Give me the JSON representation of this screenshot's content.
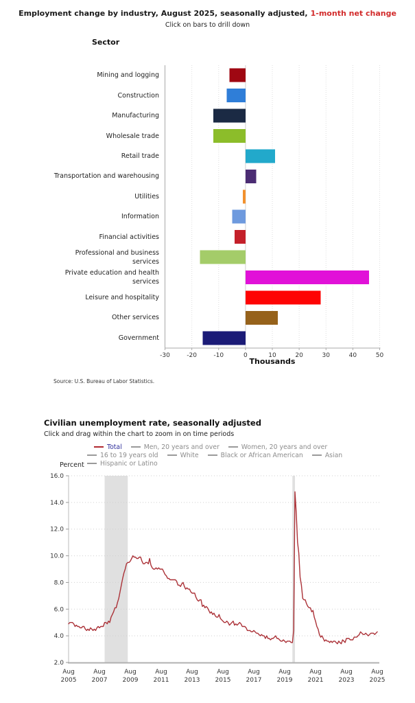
{
  "chart_data": [
    {
      "type": "bar",
      "orientation": "horizontal",
      "title": "Employment change by industry, August 2025, seasonally adjusted,",
      "title_highlight": "1-month net change",
      "title_highlight_color": "#d22b2b",
      "subtitle": "Click on bars to drill down",
      "ylabel": "Sector",
      "xlabel": "Thousands",
      "source": "Source: U.S. Bureau of Labor Statistics.",
      "xlim": [
        -30,
        50
      ],
      "xticks": [
        -30,
        -20,
        -10,
        0,
        10,
        20,
        30,
        40,
        50
      ],
      "grid": "vertical-dotted",
      "categories": [
        "Mining and logging",
        "Construction",
        "Manufacturing",
        "Wholesale trade",
        "Retail trade",
        "Transportation and warehousing",
        "Utilities",
        "Information",
        "Financial activities",
        "Professional and business services",
        "Private education and health services",
        "Leisure and hospitality",
        "Other services",
        "Government"
      ],
      "values": [
        -6,
        -7,
        -12,
        -12,
        11,
        4,
        -1,
        -5,
        -4,
        -17,
        46,
        28,
        12,
        -16
      ],
      "colors": [
        "#9f0712",
        "#2f7ed8",
        "#1b2a44",
        "#8cbd2a",
        "#22a9cb",
        "#4b2c73",
        "#f2912d",
        "#6e9ade",
        "#c4202a",
        "#a4cc69",
        "#e111d8",
        "#fe0404",
        "#96621b",
        "#1b1b77"
      ]
    },
    {
      "type": "line",
      "title": "Civilian unemployment rate, seasonally adjusted",
      "subtitle": "Click and drag within the chart to zoom in on time periods",
      "ylabel": "Percent",
      "ylim": [
        2,
        16
      ],
      "yticks": [
        2,
        4,
        6,
        8,
        10,
        12,
        14,
        16
      ],
      "grid": "horizontal-dotted",
      "line_color": "#ab3137",
      "recession_band_color": "#e0e0e0",
      "recession_bands": [
        {
          "start_index": 28,
          "end_index": 46
        },
        {
          "start_index": 174,
          "end_index": 176
        }
      ],
      "legend_rows": [
        [
          {
            "label": "Total",
            "swatch_color": "#b0282f",
            "text_color": "#30309c",
            "active": true
          },
          {
            "label": "Men, 20 years and over",
            "swatch_color": "#9a9a9a",
            "text_color": "#8c8c8c",
            "active": false
          },
          {
            "label": "Women, 20 years and over",
            "swatch_color": "#9a9a9a",
            "text_color": "#8c8c8c",
            "active": false
          }
        ],
        [
          {
            "label": "16 to 19 years old",
            "swatch_color": "#9a9a9a",
            "text_color": "#8c8c8c",
            "active": false
          },
          {
            "label": "White",
            "swatch_color": "#9a9a9a",
            "text_color": "#8c8c8c",
            "active": false
          },
          {
            "label": "Black or African American",
            "swatch_color": "#9a9a9a",
            "text_color": "#8c8c8c",
            "active": false
          },
          {
            "label": "Asian",
            "swatch_color": "#9a9a9a",
            "text_color": "#8c8c8c",
            "active": false
          }
        ],
        [
          {
            "label": "Hispanic or Latino",
            "swatch_color": "#9a9a9a",
            "text_color": "#8c8c8c",
            "active": false
          }
        ]
      ],
      "series_name": "Total",
      "x_unit": "monthly",
      "xticks": [
        {
          "index": 0,
          "line1": "Aug",
          "line2": "2005"
        },
        {
          "index": 24,
          "line1": "Aug",
          "line2": "2007"
        },
        {
          "index": 48,
          "line1": "Aug",
          "line2": "2009"
        },
        {
          "index": 72,
          "line1": "Aug",
          "line2": "2011"
        },
        {
          "index": 96,
          "line1": "Aug",
          "line2": "2013"
        },
        {
          "index": 120,
          "line1": "Aug",
          "line2": "2015"
        },
        {
          "index": 144,
          "line1": "Aug",
          "line2": "2017"
        },
        {
          "index": 168,
          "line1": "Aug",
          "line2": "2019"
        },
        {
          "index": 192,
          "line1": "Aug",
          "line2": "2021"
        },
        {
          "index": 216,
          "line1": "Aug",
          "line2": "2023"
        },
        {
          "index": 240,
          "line1": "Aug",
          "line2": "2025"
        }
      ],
      "values": [
        4.9,
        5.0,
        5.0,
        5.0,
        4.9,
        4.7,
        4.8,
        4.7,
        4.7,
        4.6,
        4.6,
        4.7,
        4.7,
        4.5,
        4.4,
        4.5,
        4.4,
        4.6,
        4.5,
        4.4,
        4.5,
        4.4,
        4.6,
        4.7,
        4.6,
        4.7,
        4.7,
        4.7,
        5.0,
        5.0,
        4.9,
        5.1,
        5.0,
        5.4,
        5.6,
        5.8,
        6.1,
        6.1,
        6.5,
        6.8,
        7.3,
        7.8,
        8.3,
        8.7,
        9.0,
        9.4,
        9.5,
        9.5,
        9.6,
        9.8,
        10.0,
        9.9,
        9.9,
        9.8,
        9.8,
        9.9,
        9.9,
        9.6,
        9.4,
        9.4,
        9.5,
        9.5,
        9.4,
        9.8,
        9.3,
        9.1,
        9.0,
        9.0,
        9.1,
        9.0,
        9.1,
        9.0,
        9.0,
        9.0,
        8.8,
        8.6,
        8.5,
        8.3,
        8.3,
        8.2,
        8.2,
        8.2,
        8.2,
        8.2,
        8.1,
        7.8,
        7.8,
        7.7,
        7.9,
        8.0,
        7.7,
        7.5,
        7.6,
        7.5,
        7.5,
        7.3,
        7.2,
        7.2,
        7.2,
        6.9,
        6.7,
        6.6,
        6.7,
        6.7,
        6.2,
        6.3,
        6.1,
        6.2,
        6.1,
        5.9,
        5.7,
        5.8,
        5.6,
        5.7,
        5.5,
        5.4,
        5.4,
        5.6,
        5.3,
        5.2,
        5.1,
        5.0,
        5.0,
        5.1,
        5.0,
        4.8,
        4.9,
        5.0,
        5.1,
        4.8,
        4.9,
        4.8,
        4.9,
        5.0,
        4.9,
        4.7,
        4.7,
        4.7,
        4.6,
        4.4,
        4.4,
        4.4,
        4.3,
        4.3,
        4.4,
        4.3,
        4.2,
        4.2,
        4.1,
        4.0,
        4.1,
        4.0,
        4.0,
        3.8,
        4.0,
        3.8,
        3.8,
        3.7,
        3.8,
        3.8,
        3.9,
        4.0,
        3.8,
        3.8,
        3.7,
        3.6,
        3.6,
        3.7,
        3.6,
        3.5,
        3.6,
        3.6,
        3.6,
        3.5,
        3.5,
        4.4,
        14.8,
        13.2,
        11.0,
        10.2,
        8.4,
        7.8,
        6.8,
        6.7,
        6.7,
        6.4,
        6.2,
        6.1,
        6.1,
        5.8,
        5.9,
        5.4,
        5.1,
        4.7,
        4.5,
        4.1,
        3.9,
        4.0,
        3.8,
        3.6,
        3.7,
        3.6,
        3.6,
        3.5,
        3.6,
        3.5,
        3.6,
        3.6,
        3.5,
        3.4,
        3.6,
        3.5,
        3.4,
        3.7,
        3.6,
        3.5,
        3.8,
        3.8,
        3.8,
        3.7,
        3.7,
        3.7,
        3.9,
        3.9,
        3.9,
        4.0,
        4.1,
        4.3,
        4.2,
        4.1,
        4.1,
        4.2,
        4.1,
        4.0,
        4.1,
        4.2,
        4.2,
        4.2,
        4.1,
        4.2,
        4.3
      ]
    }
  ]
}
